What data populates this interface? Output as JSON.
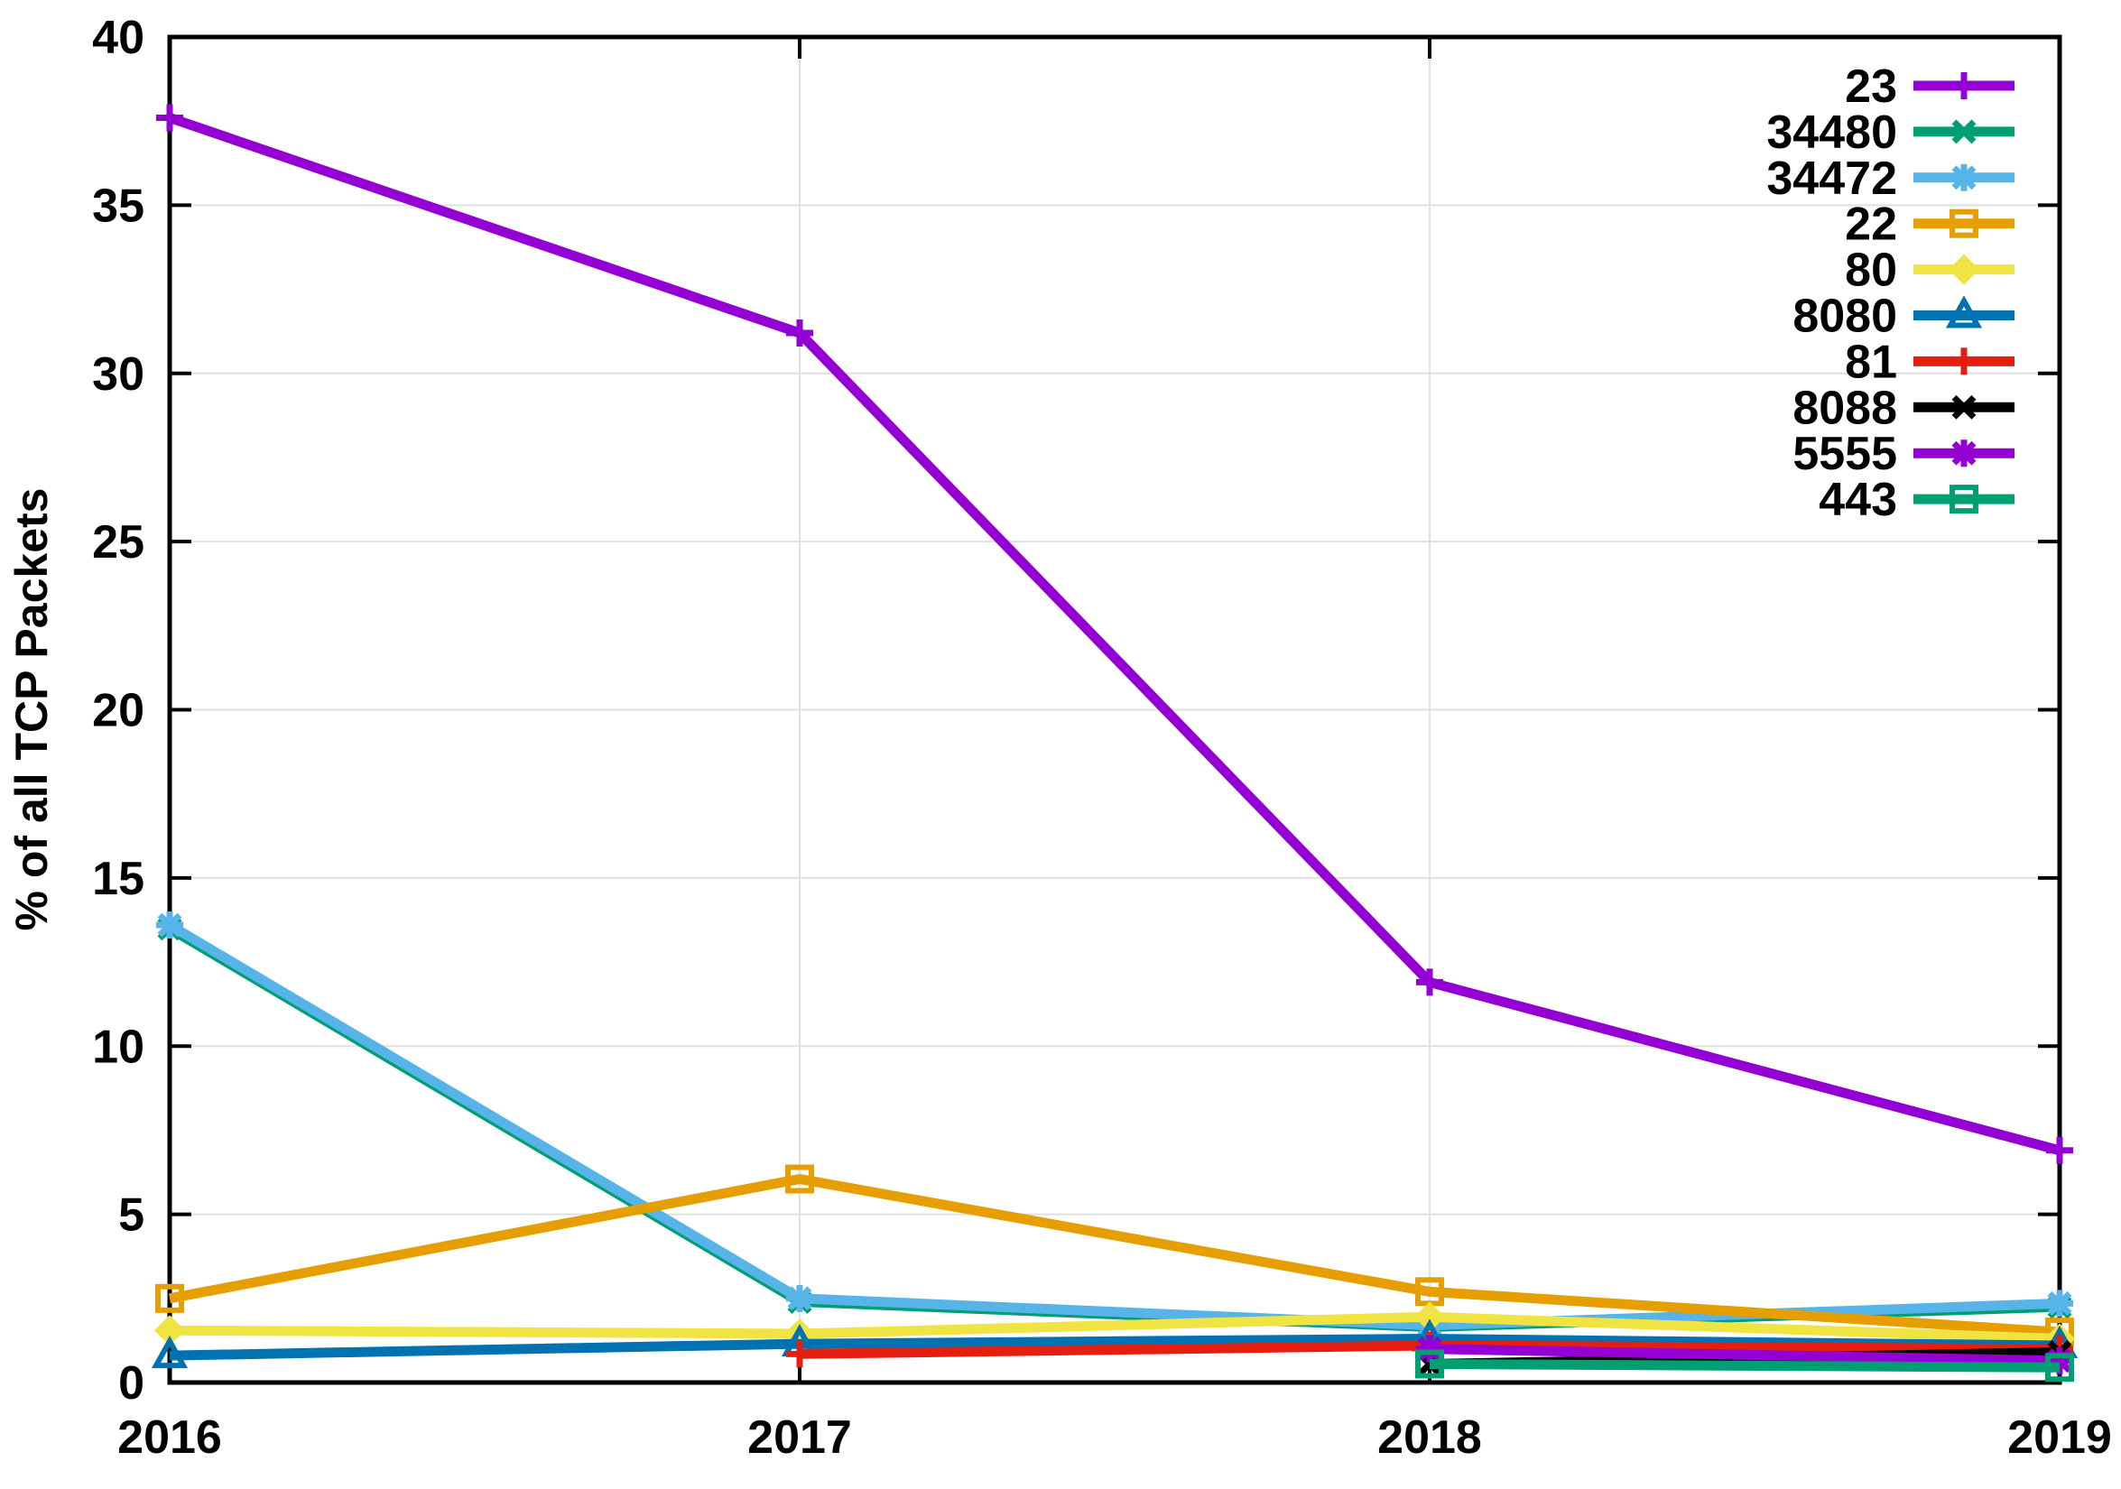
{
  "chart_data": {
    "type": "line",
    "title": "",
    "xlabel": "",
    "ylabel": "% of all TCP Packets",
    "x": [
      2016,
      2017,
      2018,
      2019
    ],
    "x_tick_labels": [
      "2016",
      "2017",
      "2018",
      "2019"
    ],
    "ylim": [
      0,
      40
    ],
    "ytick_step": 5,
    "y_tick_labels": [
      "0",
      "5",
      "10",
      "15",
      "20",
      "25",
      "30",
      "35",
      "40"
    ],
    "grid": true,
    "legend_position": "top-right-inside",
    "colors": {
      "grid": "#e0e0e0",
      "axis": "#000000",
      "background": "#ffffff"
    },
    "series": [
      {
        "name": "23",
        "color": "#9400d3",
        "marker": "plus",
        "values": [
          37.6,
          31.2,
          11.9,
          6.9
        ]
      },
      {
        "name": "34480",
        "color": "#009e73",
        "marker": "x",
        "values": [
          13.5,
          2.4,
          1.65,
          2.25
        ]
      },
      {
        "name": "34472",
        "color": "#56b4e9",
        "marker": "asterisk",
        "values": [
          13.6,
          2.5,
          1.7,
          2.35
        ]
      },
      {
        "name": "22",
        "color": "#e69f00",
        "marker": "square-open",
        "values": [
          2.5,
          6.05,
          2.7,
          1.5
        ]
      },
      {
        "name": "80",
        "color": "#f0e442",
        "marker": "diamond-filled",
        "values": [
          1.55,
          1.45,
          1.95,
          1.3
        ]
      },
      {
        "name": "8080",
        "color": "#0072b2",
        "marker": "triangle-open",
        "values": [
          0.8,
          1.15,
          1.3,
          1.1
        ]
      },
      {
        "name": "81",
        "color": "#e51e10",
        "marker": "plus",
        "values": [
          null,
          0.85,
          1.1,
          1.0
        ]
      },
      {
        "name": "8088",
        "color": "#000000",
        "marker": "x",
        "values": [
          null,
          null,
          0.55,
          0.9
        ]
      },
      {
        "name": "5555",
        "color": "#9400d3",
        "marker": "asterisk",
        "values": [
          null,
          null,
          1.0,
          0.65
        ]
      },
      {
        "name": "443",
        "color": "#009e73",
        "marker": "square-open",
        "values": [
          null,
          null,
          0.55,
          0.45
        ]
      }
    ]
  }
}
